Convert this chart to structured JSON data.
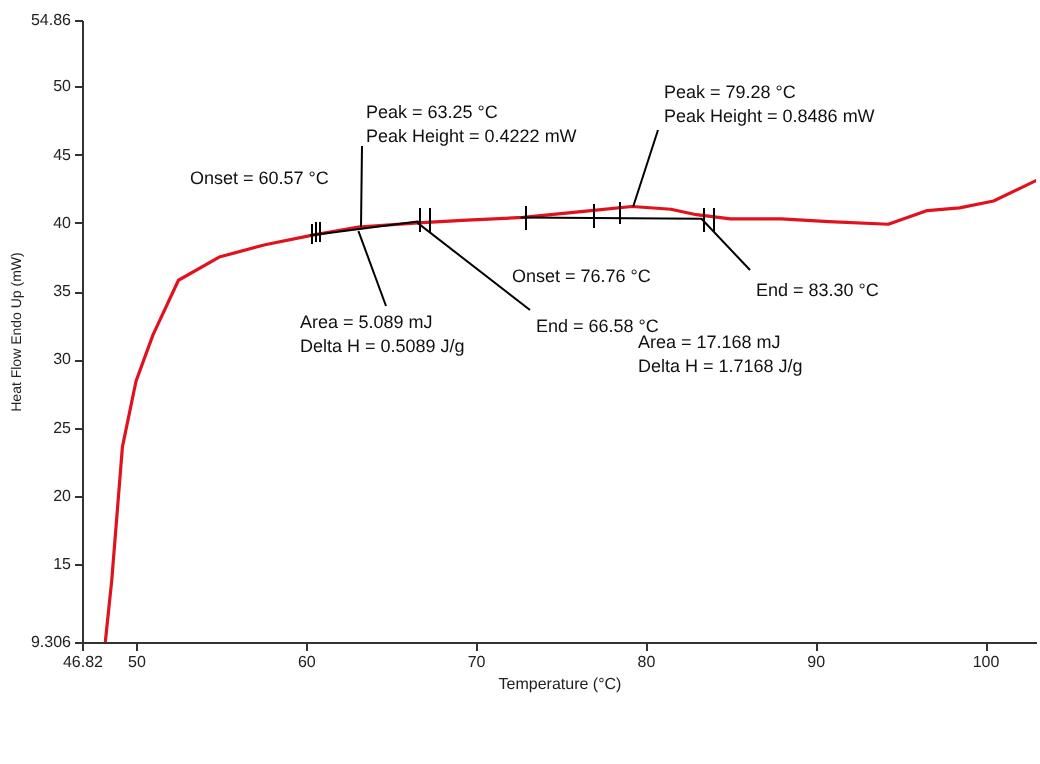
{
  "chart_data": {
    "type": "line",
    "xlabel": "Temperature (°C)",
    "ylabel": "Heat Flow Endo Up (mW)",
    "xlim": [
      46.82,
      103
    ],
    "ylim": [
      9.306,
      54.86
    ],
    "xticks": [
      46.82,
      50,
      60,
      70,
      80,
      90,
      100
    ],
    "yticks": [
      9.306,
      15,
      20,
      25,
      30,
      35,
      40,
      45,
      50,
      54.86
    ],
    "grid": false,
    "marker": "none",
    "line_style": "solid",
    "series": [
      {
        "color": "#e0121e",
        "x": [
          48.2,
          48.57,
          49.2,
          50.0,
          51.0,
          52.5,
          54.9,
          57.6,
          60.4,
          63.1,
          66.6,
          69.5,
          72.8,
          76.8,
          79.2,
          81.5,
          83.0,
          85.0,
          88.0,
          90.8,
          94.3,
          96.6,
          98.5,
          100.5,
          103
        ],
        "values": [
          9.4,
          13.8,
          23.6,
          28.4,
          31.8,
          35.8,
          37.5,
          38.4,
          39.1,
          39.7,
          40.0,
          40.2,
          40.4,
          40.9,
          41.2,
          41.0,
          40.6,
          40.3,
          40.3,
          40.1,
          39.9,
          40.9,
          41.1,
          41.6,
          43.1
        ]
      },
      {
        "color": "#000000",
        "x": [
          60.3,
          66.6
        ],
        "values": [
          39.1,
          40.1
        ]
      },
      {
        "color": "#000000",
        "x": [
          72.7,
          83.3
        ],
        "values": [
          40.4,
          40.3
        ]
      }
    ],
    "annotations": [
      "Onset = 60.57 °C",
      {
        "text": "Peak = 63.25 °C\nPeak Height = 0.4222 mW",
        "x": 63.25,
        "y": 39.7
      },
      {
        "text": "Area = 5.089 mJ\nDelta H = 0.5089 J/g",
        "x": 63.1,
        "y": 39.4
      },
      {
        "text": "End = 66.58 °C",
        "x": 66.58,
        "y": 40.0
      },
      "Onset = 76.76 °C",
      {
        "text": "Peak = 79.28 °C\nPeak Height = 0.8486 mW",
        "x": 79.28,
        "y": 41.2
      },
      "Area = 17.168 mJ\nDelta H = 1.7168 J/g",
      {
        "text": "End = 83.30 °C",
        "x": 83.3,
        "y": 40.3
      }
    ]
  }
}
